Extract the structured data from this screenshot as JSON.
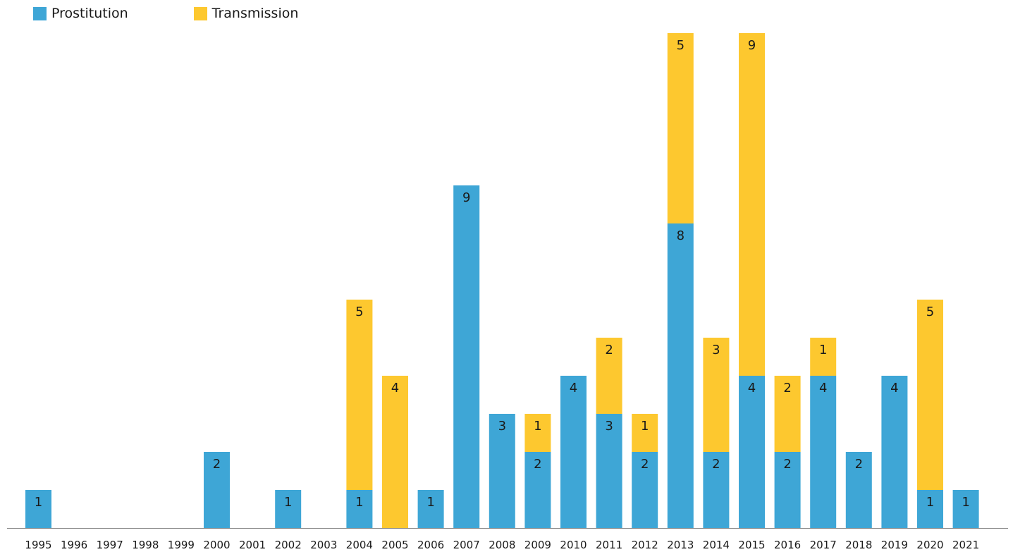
{
  "chart_data": {
    "type": "bar",
    "stacked": true,
    "categories": [
      "1995",
      "1996",
      "1997",
      "1998",
      "1999",
      "2000",
      "2001",
      "2002",
      "2003",
      "2004",
      "2005",
      "2006",
      "2007",
      "2008",
      "2009",
      "2010",
      "2011",
      "2012",
      "2013",
      "2014",
      "2015",
      "2016",
      "2017",
      "2018",
      "2019",
      "2020",
      "2021"
    ],
    "series": [
      {
        "name": "Prostitution",
        "color": "#3ea6d6",
        "values": [
          1,
          0,
          0,
          0,
          0,
          2,
          0,
          1,
          0,
          1,
          0,
          1,
          9,
          3,
          2,
          4,
          3,
          2,
          8,
          2,
          4,
          2,
          4,
          2,
          4,
          1,
          1
        ]
      },
      {
        "name": "Transmission",
        "color": "#fdc82f",
        "values": [
          0,
          0,
          0,
          0,
          0,
          0,
          0,
          0,
          0,
          5,
          4,
          0,
          0,
          0,
          1,
          0,
          2,
          1,
          5,
          3,
          9,
          2,
          1,
          0,
          0,
          5,
          0
        ]
      }
    ],
    "legend_position": "top-left",
    "grid": false,
    "ylim": [
      0,
      13
    ],
    "axis_color": "#8c8c8c"
  }
}
